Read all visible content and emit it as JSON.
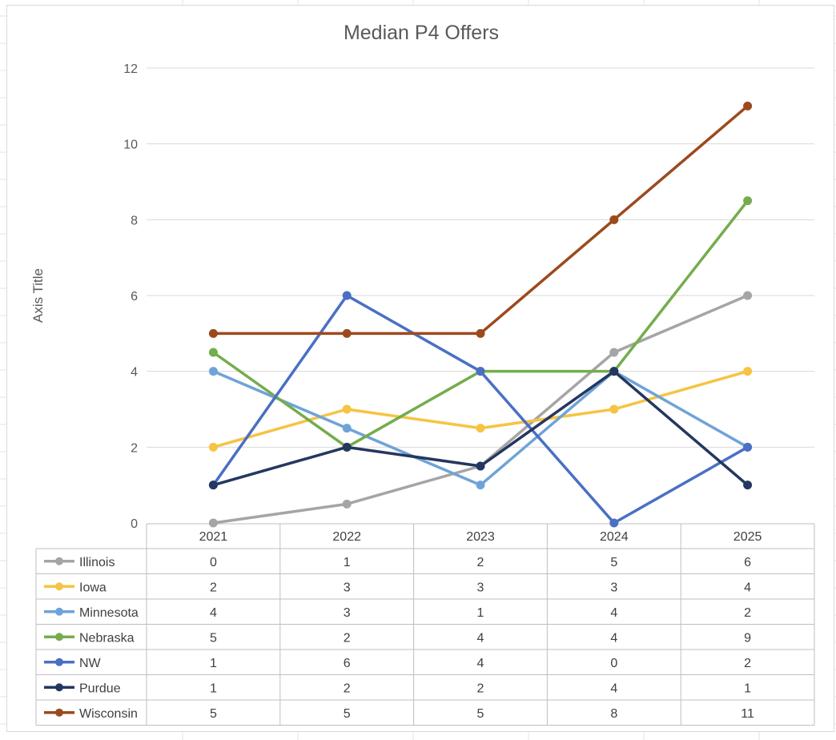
{
  "chart_data": {
    "type": "line",
    "title": "Median P4 Offers",
    "xlabel": "",
    "ylabel": "Axis Title",
    "ylim": [
      0,
      12
    ],
    "ytick_step": 2,
    "grid": true,
    "legend": "data-table-below",
    "categories": [
      "2021",
      "2022",
      "2023",
      "2024",
      "2025"
    ],
    "series": [
      {
        "name": "Illinois",
        "color": "#a5a5a5",
        "values": [
          0,
          0.5,
          1.5,
          4.5,
          6
        ],
        "table_values": [
          "0",
          "1",
          "2",
          "5",
          "6"
        ]
      },
      {
        "name": "Iowa",
        "color": "#f6c343",
        "values": [
          2,
          3,
          2.5,
          3,
          4
        ],
        "table_values": [
          "2",
          "3",
          "3",
          "3",
          "4"
        ]
      },
      {
        "name": "Minnesota",
        "color": "#6fa3d8",
        "values": [
          4,
          2.5,
          1,
          4,
          2
        ],
        "table_values": [
          "4",
          "3",
          "1",
          "4",
          "2"
        ]
      },
      {
        "name": "Nebraska",
        "color": "#74ad4c",
        "values": [
          4.5,
          2,
          4,
          4,
          8.5
        ],
        "table_values": [
          "5",
          "2",
          "4",
          "4",
          "9"
        ]
      },
      {
        "name": "NW",
        "color": "#4a6fc5",
        "values": [
          1,
          6,
          4,
          0,
          2
        ],
        "table_values": [
          "1",
          "6",
          "4",
          "0",
          "2"
        ]
      },
      {
        "name": "Purdue",
        "color": "#24375f",
        "values": [
          1,
          2,
          1.5,
          4,
          1
        ],
        "table_values": [
          "1",
          "2",
          "2",
          "4",
          "1"
        ]
      },
      {
        "name": "Wisconsin",
        "color": "#9c4a1d",
        "values": [
          5,
          5,
          5,
          8,
          11
        ],
        "table_values": [
          "5",
          "5",
          "5",
          "8",
          "11"
        ]
      }
    ]
  }
}
